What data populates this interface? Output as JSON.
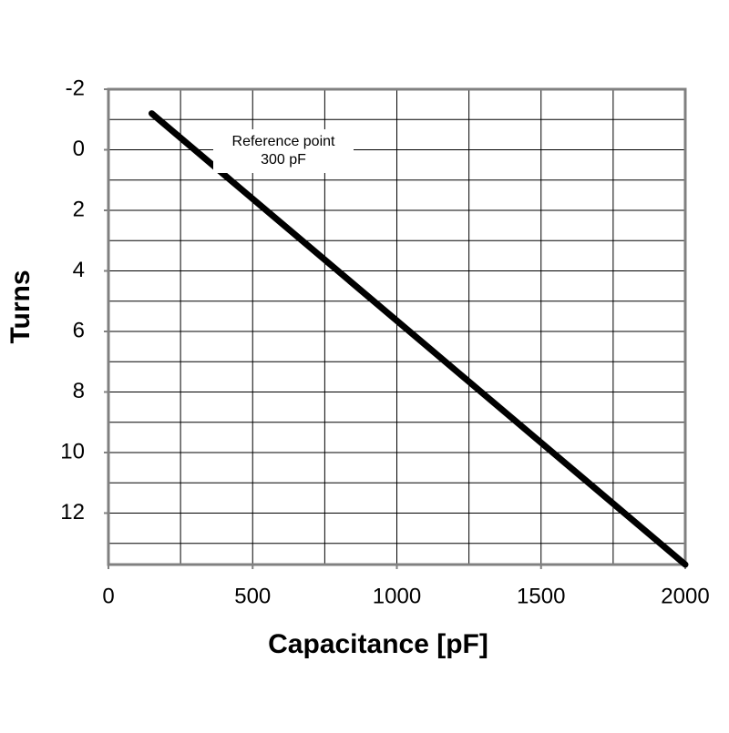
{
  "chart_data": {
    "type": "line",
    "xlabel": "Capacitance [pF]",
    "ylabel": "Turns",
    "annotation": [
      "Reference point",
      "300 pF"
    ],
    "x": [
      150,
      2000
    ],
    "series": [
      {
        "color": "#000000",
        "values": [
          -1.2,
          13.7
        ]
      }
    ],
    "xlim": [
      0,
      2000
    ],
    "xticks": [
      0,
      500,
      1000,
      1500,
      2000
    ],
    "xgrid": [
      250,
      500,
      750,
      1000,
      1250,
      1500,
      1750
    ],
    "ylim": [
      -2,
      13.7
    ],
    "yticks": [
      -2,
      0,
      2,
      4,
      6,
      8,
      10,
      12
    ],
    "ygrid": [
      -1,
      0,
      1,
      2,
      3,
      4,
      5,
      6,
      7,
      8,
      9,
      10,
      11,
      12,
      13
    ],
    "y_inverted": true,
    "grid": true
  }
}
